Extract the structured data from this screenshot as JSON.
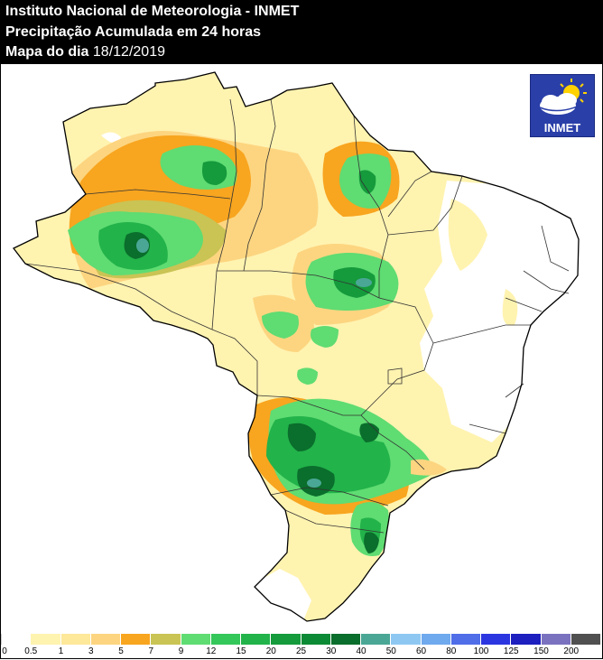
{
  "header": {
    "line1": "Instituto Nacional de Meteorologia - INMET",
    "line2": "Precipitação Acumulada em 24 horas",
    "line3_label": "Mapa do dia",
    "line3_date": "18/12/2019"
  },
  "logo": {
    "text": "INMET"
  },
  "legend": {
    "labels": [
      "0",
      "0.5",
      "1",
      "3",
      "5",
      "7",
      "9",
      "12",
      "15",
      "20",
      "25",
      "30",
      "40",
      "50",
      "60",
      "80",
      "100",
      "125",
      "150",
      "200"
    ],
    "colors": [
      "#ffffff",
      "#fff3b0",
      "#fee899",
      "#fdd580",
      "#f8a51f",
      "#c9c454",
      "#5fdc72",
      "#34c75a",
      "#22b34a",
      "#159a3c",
      "#0d8a35",
      "#0a6e2c",
      "#4aa796",
      "#8ec8f2",
      "#6fa9ee",
      "#4f6ee8",
      "#2c36e0",
      "#1d1fbf",
      "#7a72bf",
      "#505050"
    ]
  },
  "colors": {
    "none": "#ffffff",
    "light_yellow": "#fff3b0",
    "yellow": "#fdd580",
    "orange": "#f8a51f",
    "olive": "#c9c454",
    "light_green": "#5fdc72",
    "green": "#22b34a",
    "dark_green": "#0a6e2c",
    "teal": "#4aa796"
  }
}
